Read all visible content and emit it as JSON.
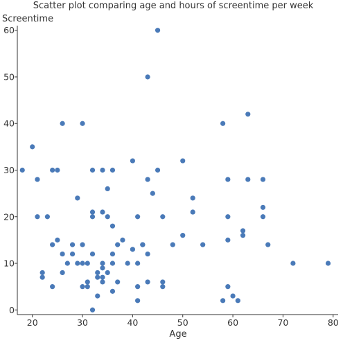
{
  "chart_data": {
    "type": "scatter",
    "title": "Scatter plot comparing age and hours of screentime per week",
    "xlabel": "Age",
    "ylabel": "Screentime",
    "xlim": [
      17,
      81
    ],
    "ylim": [
      -1,
      61
    ],
    "x_ticks": [
      20,
      30,
      40,
      50,
      60,
      70,
      80
    ],
    "y_ticks": [
      0,
      10,
      20,
      30,
      40,
      50,
      60
    ],
    "grid": false,
    "marker_color": "#4a7ab8",
    "series": [
      {
        "points": [
          [
            18,
            30
          ],
          [
            20,
            35
          ],
          [
            21,
            28
          ],
          [
            21,
            20
          ],
          [
            22,
            8
          ],
          [
            22,
            7
          ],
          [
            23,
            20
          ],
          [
            24,
            30
          ],
          [
            24,
            14
          ],
          [
            24,
            5
          ],
          [
            25,
            30
          ],
          [
            25,
            15
          ],
          [
            26,
            40
          ],
          [
            26,
            12
          ],
          [
            26,
            8
          ],
          [
            27,
            10
          ],
          [
            28,
            14
          ],
          [
            28,
            12
          ],
          [
            29,
            24
          ],
          [
            29,
            10
          ],
          [
            30,
            40
          ],
          [
            30,
            14
          ],
          [
            30,
            10
          ],
          [
            30,
            5
          ],
          [
            31,
            10
          ],
          [
            31,
            6
          ],
          [
            31,
            5
          ],
          [
            32,
            30
          ],
          [
            32,
            21
          ],
          [
            32,
            20
          ],
          [
            32,
            12
          ],
          [
            32,
            0
          ],
          [
            33,
            8
          ],
          [
            33,
            7
          ],
          [
            33,
            3
          ],
          [
            34,
            30
          ],
          [
            34,
            21
          ],
          [
            34,
            10
          ],
          [
            34,
            9
          ],
          [
            34,
            7
          ],
          [
            34,
            6
          ],
          [
            35,
            26
          ],
          [
            35,
            20
          ],
          [
            35,
            8
          ],
          [
            36,
            30
          ],
          [
            36,
            18
          ],
          [
            36,
            12
          ],
          [
            36,
            10
          ],
          [
            36,
            4
          ],
          [
            37,
            14
          ],
          [
            37,
            6
          ],
          [
            38,
            15
          ],
          [
            39,
            10
          ],
          [
            40,
            32
          ],
          [
            40,
            13
          ],
          [
            41,
            20
          ],
          [
            41,
            10
          ],
          [
            41,
            5
          ],
          [
            41,
            2
          ],
          [
            42,
            14
          ],
          [
            42,
            14
          ],
          [
            43,
            50
          ],
          [
            43,
            28
          ],
          [
            43,
            12
          ],
          [
            43,
            6
          ],
          [
            44,
            25
          ],
          [
            45,
            60
          ],
          [
            45,
            30
          ],
          [
            46,
            20
          ],
          [
            46,
            6
          ],
          [
            46,
            5
          ],
          [
            48,
            14
          ],
          [
            50,
            32
          ],
          [
            50,
            16
          ],
          [
            52,
            24
          ],
          [
            52,
            21
          ],
          [
            54,
            14
          ],
          [
            58,
            40
          ],
          [
            58,
            2
          ],
          [
            59,
            28
          ],
          [
            59,
            20
          ],
          [
            59,
            15
          ],
          [
            59,
            5
          ],
          [
            60,
            3
          ],
          [
            61,
            2
          ],
          [
            62,
            17
          ],
          [
            62,
            16
          ],
          [
            63,
            42
          ],
          [
            63,
            28
          ],
          [
            66,
            28
          ],
          [
            66,
            22
          ],
          [
            66,
            20
          ],
          [
            67,
            14
          ],
          [
            72,
            10
          ],
          [
            79,
            10
          ]
        ]
      }
    ]
  }
}
